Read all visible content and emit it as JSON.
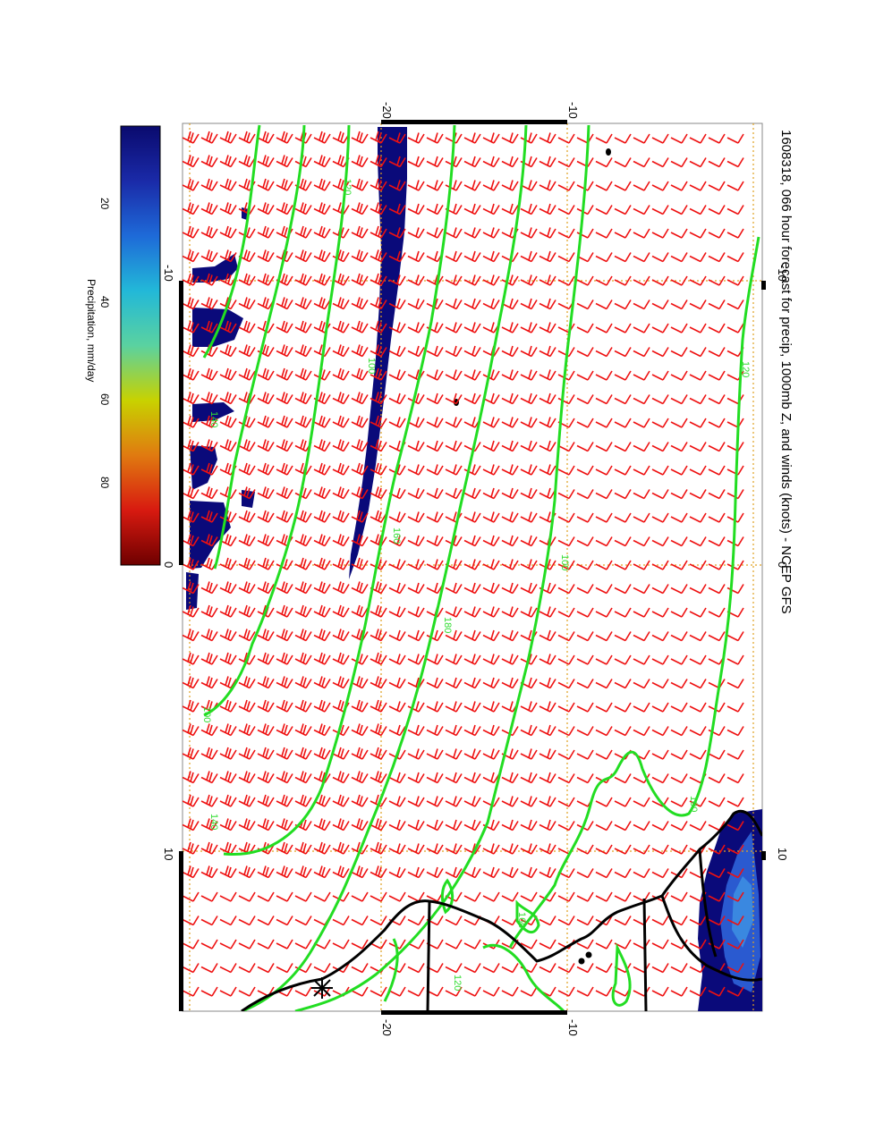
{
  "title": "1608318, 066 hour forecast for precip, 1000mb Z, and winds (knots) - NCEP GFS",
  "colorbar": {
    "label": "Precipitation, mm/day",
    "ticks": [
      "20",
      "40",
      "60",
      "80"
    ],
    "stops": [
      "#0a0a6e",
      "#1a2aa8",
      "#1e6ad8",
      "#22b8d8",
      "#5ad2a0",
      "#c8d200",
      "#e07a10",
      "#d81a10",
      "#6e0000"
    ]
  },
  "map": {
    "lon_ticks_top": [
      "-10",
      "0",
      "10"
    ],
    "lon_ticks_bottom": [
      "-10",
      "0",
      "10"
    ],
    "lat_ticks_left": [
      "-20",
      "-10"
    ],
    "lat_ticks_right": [
      "-20",
      "-10"
    ],
    "contour_labels": [
      "120",
      "120",
      "100",
      "140",
      "160",
      "180",
      "100",
      "100",
      "140",
      "160",
      "120",
      "100"
    ],
    "colors": {
      "contour": "#22dd22",
      "wind_barb": "#ee1111",
      "coast": "#000000",
      "precip_dark": "#0a0a7a",
      "precip_mid": "#2a5ad0",
      "grid": "#e0a020"
    },
    "layers": [
      "precipitation",
      "1000mb geopotential height contours",
      "wind barbs",
      "coastline",
      "lat-lon grid"
    ]
  }
}
